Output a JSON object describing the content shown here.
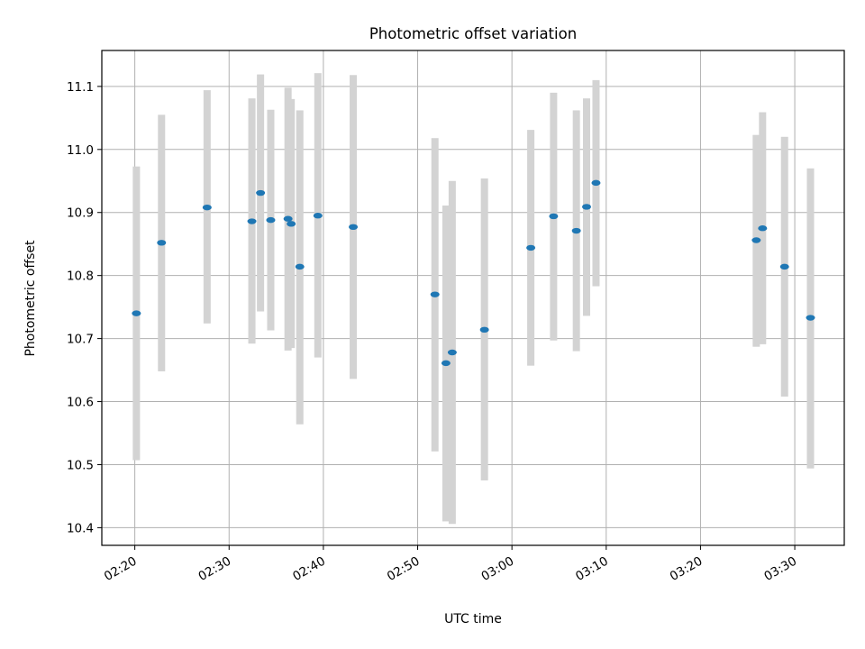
{
  "chart_data": {
    "type": "scatter",
    "title": "Photometric offset variation",
    "xlabel": "UTC time",
    "ylabel": "Photometric offset",
    "x_ticks": [
      "02:20",
      "02:30",
      "02:40",
      "02:50",
      "03:00",
      "03:10",
      "03:20",
      "03:30"
    ],
    "y_ticks": [
      "10.4",
      "10.5",
      "10.6",
      "10.7",
      "10.8",
      "10.9",
      "11.0",
      "11.1"
    ],
    "xlim": [
      "02:16:30",
      "03:35:15"
    ],
    "ylim": [
      10.372,
      11.157
    ],
    "grid": true,
    "marker_color": "#1f77b4",
    "errorbar_color": "#d3d3d3",
    "points": [
      {
        "x": "02:20:10",
        "y": 10.74,
        "yerr_low": 10.507,
        "yerr_high": 10.973
      },
      {
        "x": "02:22:50",
        "y": 10.852,
        "yerr_low": 10.648,
        "yerr_high": 11.055
      },
      {
        "x": "02:27:40",
        "y": 10.908,
        "yerr_low": 10.724,
        "yerr_high": 11.094
      },
      {
        "x": "02:32:25",
        "y": 10.886,
        "yerr_low": 10.692,
        "yerr_high": 11.081
      },
      {
        "x": "02:33:20",
        "y": 10.931,
        "yerr_low": 10.743,
        "yerr_high": 11.119
      },
      {
        "x": "02:34:25",
        "y": 10.888,
        "yerr_low": 10.713,
        "yerr_high": 11.063
      },
      {
        "x": "02:36:15",
        "y": 10.89,
        "yerr_low": 10.681,
        "yerr_high": 11.098
      },
      {
        "x": "02:36:35",
        "y": 10.882,
        "yerr_low": 10.685,
        "yerr_high": 11.08
      },
      {
        "x": "02:37:30",
        "y": 10.814,
        "yerr_low": 10.564,
        "yerr_high": 11.062
      },
      {
        "x": "02:39:25",
        "y": 10.895,
        "yerr_low": 10.67,
        "yerr_high": 11.121
      },
      {
        "x": "02:43:10",
        "y": 10.877,
        "yerr_low": 10.636,
        "yerr_high": 11.118
      },
      {
        "x": "02:51:50",
        "y": 10.77,
        "yerr_low": 10.521,
        "yerr_high": 11.018
      },
      {
        "x": "02:53:00",
        "y": 10.661,
        "yerr_low": 10.41,
        "yerr_high": 10.911
      },
      {
        "x": "02:53:40",
        "y": 10.678,
        "yerr_low": 10.406,
        "yerr_high": 10.95
      },
      {
        "x": "02:57:05",
        "y": 10.714,
        "yerr_low": 10.475,
        "yerr_high": 10.954
      },
      {
        "x": "03:02:00",
        "y": 10.844,
        "yerr_low": 10.657,
        "yerr_high": 11.031
      },
      {
        "x": "03:04:25",
        "y": 10.894,
        "yerr_low": 10.697,
        "yerr_high": 11.09
      },
      {
        "x": "03:06:50",
        "y": 10.871,
        "yerr_low": 10.68,
        "yerr_high": 11.062
      },
      {
        "x": "03:07:55",
        "y": 10.909,
        "yerr_low": 10.736,
        "yerr_high": 11.081
      },
      {
        "x": "03:08:55",
        "y": 10.947,
        "yerr_low": 10.783,
        "yerr_high": 11.11
      },
      {
        "x": "03:25:55",
        "y": 10.856,
        "yerr_low": 10.687,
        "yerr_high": 11.023
      },
      {
        "x": "03:26:35",
        "y": 10.875,
        "yerr_low": 10.691,
        "yerr_high": 11.059
      },
      {
        "x": "03:28:55",
        "y": 10.814,
        "yerr_low": 10.608,
        "yerr_high": 11.02
      },
      {
        "x": "03:31:40",
        "y": 10.733,
        "yerr_low": 10.494,
        "yerr_high": 10.97
      }
    ]
  }
}
